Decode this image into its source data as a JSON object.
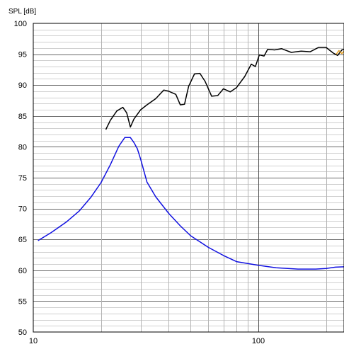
{
  "chart_data": {
    "type": "line",
    "title": "",
    "xlabel": "",
    "ylabel": "SPL [dB]",
    "xscale": "log",
    "xlim": [
      10,
      250
    ],
    "ylim": [
      50,
      100
    ],
    "grid": true,
    "x_tick_labels": [
      "10",
      "100"
    ],
    "y_tick_labels": [
      "100",
      "95",
      "90",
      "85",
      "80",
      "75",
      "70",
      "65",
      "60",
      "55",
      "50"
    ],
    "series": [
      {
        "color": "#000000",
        "x": [
          21,
          22,
          23.5,
          25,
          26,
          27,
          28,
          30,
          32,
          35,
          38,
          40,
          43,
          45,
          47,
          49,
          52,
          55,
          58,
          62,
          66,
          70,
          75,
          80,
          87,
          93,
          97,
          101,
          106,
          110,
          118,
          127,
          140,
          155,
          170,
          185,
          200,
          215,
          225,
          235,
          245,
          250
        ],
        "y": [
          82.8,
          84.3,
          85.8,
          86.4,
          85.5,
          83.2,
          84.5,
          86,
          86.8,
          87.8,
          89.2,
          89,
          88.5,
          86.8,
          86.9,
          89.8,
          91.8,
          91.9,
          90.6,
          88.2,
          88.3,
          89.4,
          88.9,
          89.6,
          91.4,
          93.4,
          93,
          94.9,
          94.7,
          95.8,
          95.7,
          95.9,
          95.3,
          95.5,
          95.4,
          96.1,
          96.1,
          95.2,
          94.8,
          95.7,
          95.9,
          95.8
        ]
      },
      {
        "color": "#e8a020",
        "x": [
          222,
          228,
          235,
          243,
          250
        ],
        "y": [
          95.0,
          95.6,
          95.1,
          95.7,
          96.0
        ]
      },
      {
        "color": "#1010e0",
        "x": [
          10.5,
          12,
          14,
          16,
          18,
          20,
          22,
          24,
          25.5,
          27,
          28,
          29,
          30,
          32,
          35,
          40,
          45,
          50,
          60,
          70,
          80,
          100,
          120,
          150,
          180,
          200,
          220,
          250
        ],
        "y": [
          64.8,
          66.1,
          67.8,
          69.6,
          71.8,
          74.2,
          77.1,
          80.1,
          81.5,
          81.5,
          80.7,
          79.7,
          78.0,
          74.3,
          71.9,
          69.2,
          67.2,
          65.6,
          63.7,
          62.4,
          61.4,
          60.8,
          60.4,
          60.2,
          60.2,
          60.3,
          60.5,
          60.6
        ]
      }
    ]
  }
}
